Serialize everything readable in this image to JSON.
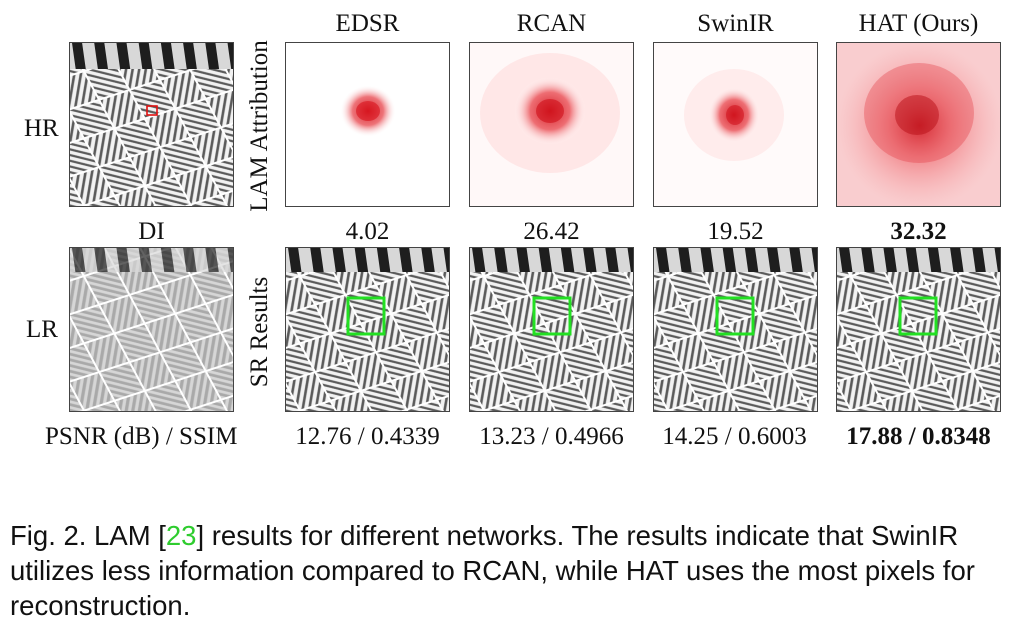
{
  "figure": {
    "row_labels": {
      "hr": "HR",
      "lr": "LR"
    },
    "side_labels": {
      "attribution": "LAM Attribution",
      "sr": "SR Results"
    },
    "columns": [
      "EDSR",
      "RCAN",
      "SwinIR",
      "HAT (Ours)"
    ],
    "di_header": "DI",
    "di_values": [
      "4.02",
      "26.42",
      "19.52",
      "32.32"
    ],
    "metric_header": "PSNR (dB) / SSIM",
    "metric_values": [
      "12.76 / 0.4339",
      "13.23 / 0.4966",
      "14.25 / 0.6003",
      "17.88 / 0.8348"
    ]
  },
  "caption": {
    "prefix": "Fig. 2. LAM [",
    "ref": "23",
    "suffix": "] results for different networks. The results indicate that SwinIR utilizes less information compared to RCAN, while HAT uses the most pixels for reconstruction."
  }
}
